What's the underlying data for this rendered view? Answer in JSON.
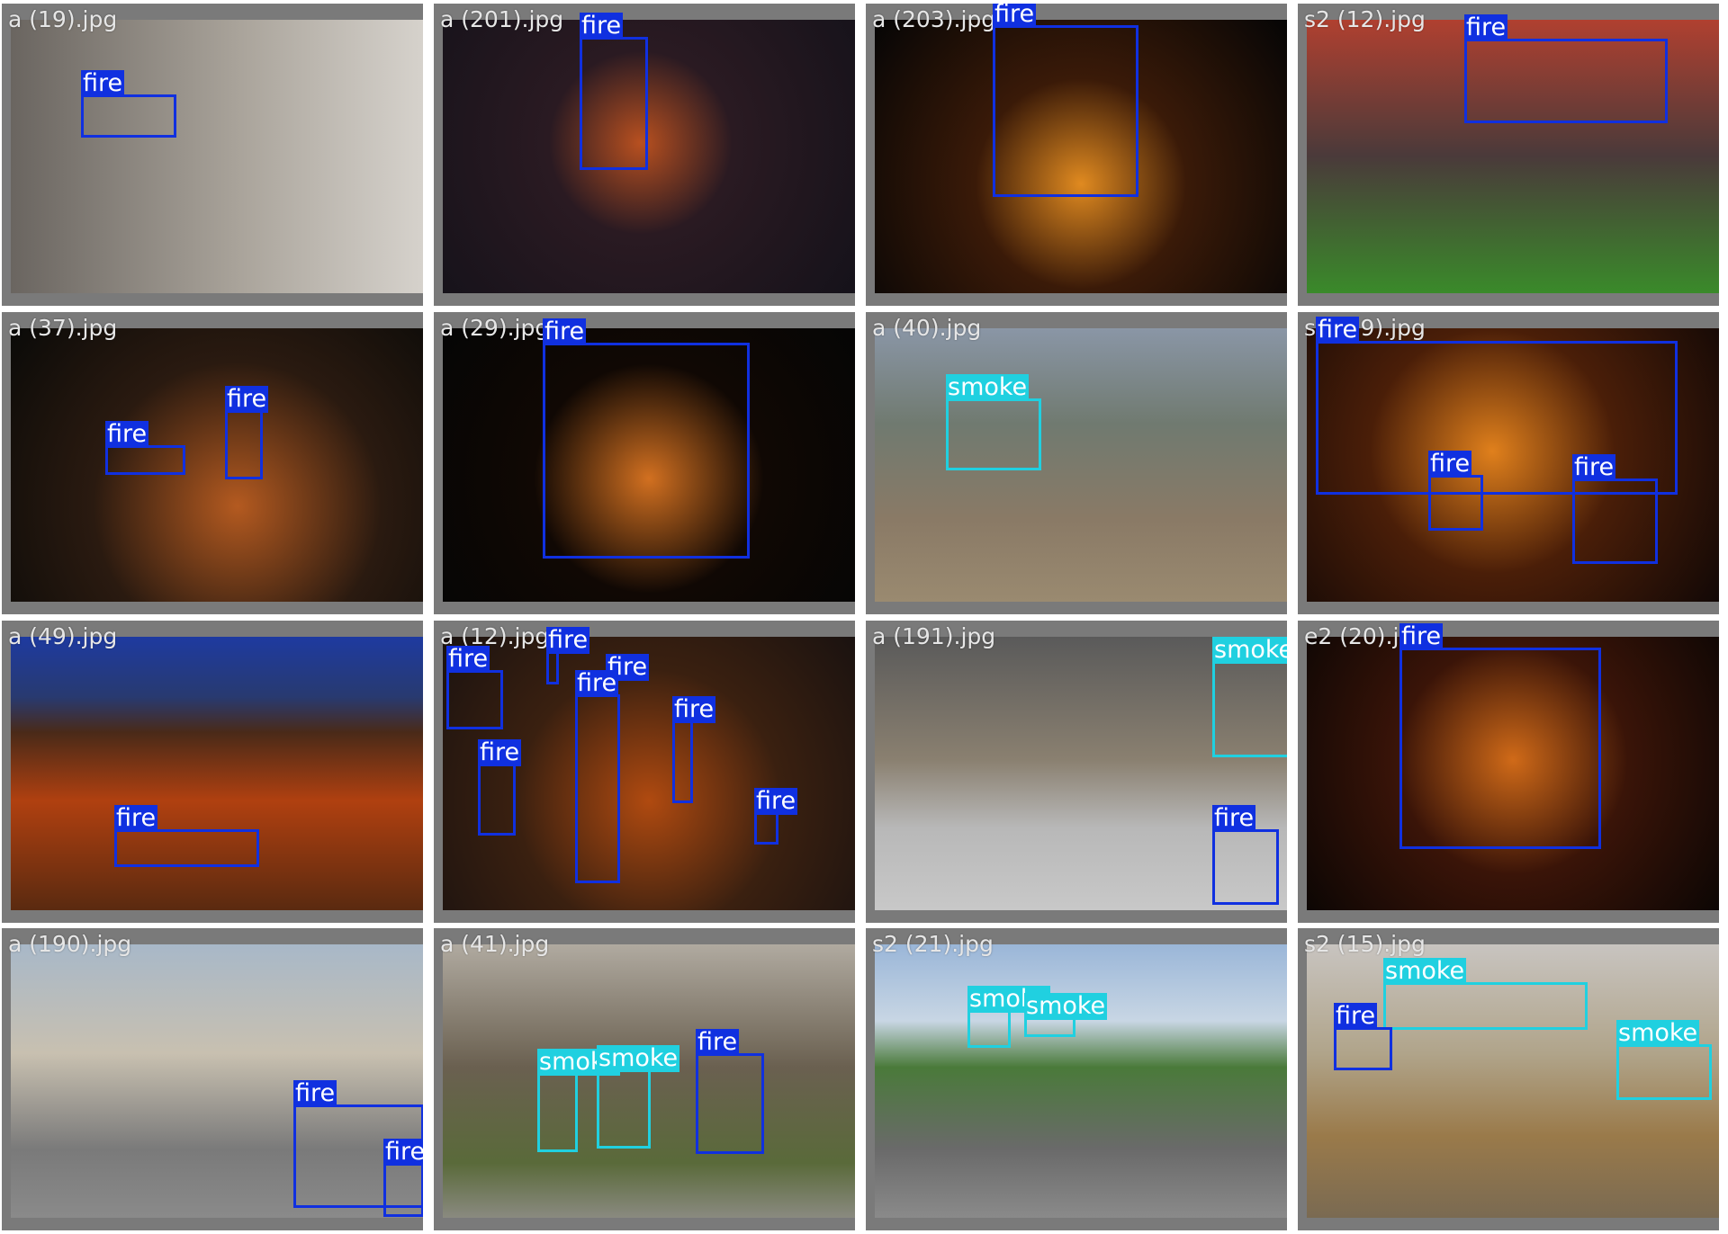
{
  "classes": {
    "fire": "fire",
    "smoke": "smoke"
  },
  "colors": {
    "fire": "#1030e0",
    "smoke": "#20d0e0",
    "cell_bg": "#7a7a7a",
    "filename_text": "#e6e6e6"
  },
  "cells": [
    {
      "filename": "a (19).jpg",
      "boxes": [
        "fire"
      ]
    },
    {
      "filename": "a (201).jpg",
      "boxes": [
        "fire"
      ]
    },
    {
      "filename": "a (203).jpg",
      "boxes": [
        "fire"
      ]
    },
    {
      "filename": "s2 (12).jpg",
      "boxes": [
        "fire"
      ]
    },
    {
      "filename": "a (37).jpg",
      "boxes": [
        "fire",
        "fire"
      ]
    },
    {
      "filename": "a (29).jpg",
      "boxes": [
        "fire"
      ]
    },
    {
      "filename": "a (40).jpg",
      "boxes": [
        "smoke"
      ]
    },
    {
      "filename": "s2 (19).jpg",
      "boxes": [
        "fire",
        "fire",
        "fire"
      ]
    },
    {
      "filename": "a (49).jpg",
      "boxes": [
        "fire"
      ]
    },
    {
      "filename": "a (12).jpg",
      "boxes": [
        "fire",
        "fire",
        "fire",
        "fire",
        "fire",
        "fire",
        "fire"
      ]
    },
    {
      "filename": "a (191).jpg",
      "boxes": [
        "smoke",
        "fire"
      ]
    },
    {
      "filename": "e2 (20).jpg",
      "boxes": [
        "fire"
      ]
    },
    {
      "filename": "a (190).jpg",
      "boxes": [
        "fire",
        "fire"
      ]
    },
    {
      "filename": "a (41).jpg",
      "boxes": [
        "smoke",
        "smoke",
        "fire"
      ]
    },
    {
      "filename": "s2 (21).jpg",
      "boxes": [
        "smoke",
        "smoke"
      ]
    },
    {
      "filename": "s2 (15).jpg",
      "boxes": [
        "smoke",
        "fire",
        "smoke"
      ]
    }
  ]
}
